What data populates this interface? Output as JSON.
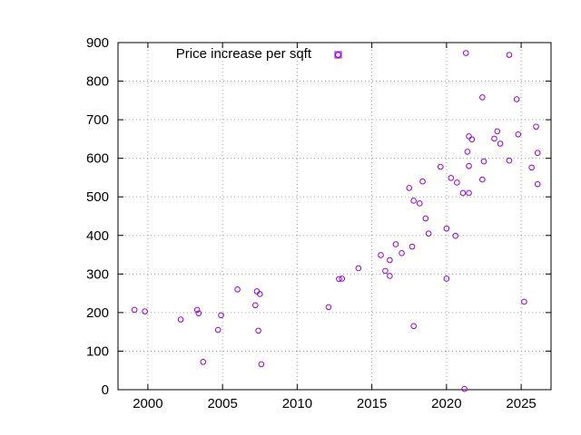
{
  "chart_data": {
    "type": "scatter",
    "title": "",
    "xlabel": "",
    "ylabel": "",
    "xlim": [
      1998,
      2027
    ],
    "ylim": [
      0,
      900
    ],
    "x_ticks": [
      2000,
      2005,
      2010,
      2015,
      2020,
      2025
    ],
    "y_ticks": [
      0,
      100,
      200,
      300,
      400,
      500,
      600,
      700,
      800,
      900
    ],
    "grid": true,
    "legend_position": "top-center",
    "marker_color": "#9400d3",
    "series": [
      {
        "name": "Price increase per sqft",
        "points": [
          [
            1999.1,
            207
          ],
          [
            1999.8,
            203
          ],
          [
            2002.2,
            182
          ],
          [
            2003.3,
            207
          ],
          [
            2003.4,
            198
          ],
          [
            2003.7,
            72
          ],
          [
            2004.7,
            155
          ],
          [
            2004.9,
            193
          ],
          [
            2006.0,
            260
          ],
          [
            2007.2,
            219
          ],
          [
            2007.3,
            255
          ],
          [
            2007.4,
            153
          ],
          [
            2007.5,
            248
          ],
          [
            2007.6,
            66
          ],
          [
            2012.1,
            214
          ],
          [
            2012.8,
            287
          ],
          [
            2013.0,
            288
          ],
          [
            2014.1,
            315
          ],
          [
            2015.6,
            349
          ],
          [
            2015.9,
            308
          ],
          [
            2016.2,
            336
          ],
          [
            2016.2,
            295
          ],
          [
            2016.6,
            377
          ],
          [
            2017.0,
            354
          ],
          [
            2017.5,
            523
          ],
          [
            2017.7,
            371
          ],
          [
            2017.8,
            490
          ],
          [
            2017.8,
            165
          ],
          [
            2018.2,
            483
          ],
          [
            2018.4,
            540
          ],
          [
            2018.6,
            444
          ],
          [
            2018.8,
            405
          ],
          [
            2019.6,
            578
          ],
          [
            2020.0,
            418
          ],
          [
            2020.0,
            288
          ],
          [
            2020.3,
            549
          ],
          [
            2020.6,
            399
          ],
          [
            2020.7,
            537
          ],
          [
            2021.1,
            510
          ],
          [
            2021.2,
            2
          ],
          [
            2021.3,
            873
          ],
          [
            2021.4,
            617
          ],
          [
            2021.5,
            580
          ],
          [
            2021.5,
            657
          ],
          [
            2021.5,
            510
          ],
          [
            2021.7,
            649
          ],
          [
            2022.4,
            545
          ],
          [
            2022.4,
            758
          ],
          [
            2022.5,
            592
          ],
          [
            2023.2,
            651
          ],
          [
            2023.4,
            670
          ],
          [
            2023.6,
            638
          ],
          [
            2024.2,
            594
          ],
          [
            2024.2,
            868
          ],
          [
            2024.7,
            753
          ],
          [
            2024.8,
            662
          ],
          [
            2025.2,
            228
          ],
          [
            2025.7,
            576
          ],
          [
            2026.0,
            682
          ],
          [
            2026.1,
            533
          ],
          [
            2026.1,
            614
          ]
        ]
      }
    ]
  }
}
